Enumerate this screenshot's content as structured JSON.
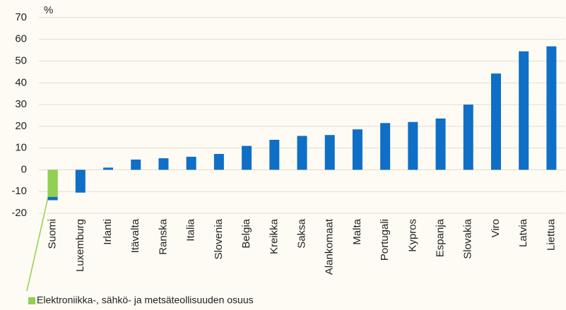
{
  "chart_data": {
    "type": "bar",
    "overlay": true,
    "y_label": "%",
    "categories": [
      "Suomi",
      "Luxemburg",
      "Irlanti",
      "Itävalta",
      "Ranska",
      "Italia",
      "Slovenia",
      "Belgia",
      "Kreikka",
      "Saksa",
      "Alankomaat",
      "Malta",
      "Portugali",
      "Kypros",
      "Espanja",
      "Slovakia",
      "Viro",
      "Latvia",
      "Liettua"
    ],
    "series": [
      {
        "color": "#0f6fc6",
        "values": [
          -14,
          -10.5,
          1,
          4.7,
          5.3,
          6,
          7.3,
          11,
          13.8,
          15.6,
          16,
          18.6,
          21.5,
          22,
          23.6,
          30,
          44.3,
          54.5,
          56.8
        ]
      },
      {
        "name": "Elektroniikka-, sähkö- ja metsäteollisuuden osuus",
        "color": "#92d050",
        "values": [
          -12.5,
          null,
          null,
          null,
          null,
          null,
          null,
          null,
          null,
          null,
          null,
          null,
          null,
          null,
          null,
          null,
          null,
          null,
          null
        ]
      }
    ],
    "ylim": [
      -20,
      70
    ],
    "yticks": [
      -20,
      -10,
      0,
      10,
      20,
      30,
      40,
      50,
      60,
      70
    ],
    "grid": true,
    "legend": "bottom-left"
  }
}
